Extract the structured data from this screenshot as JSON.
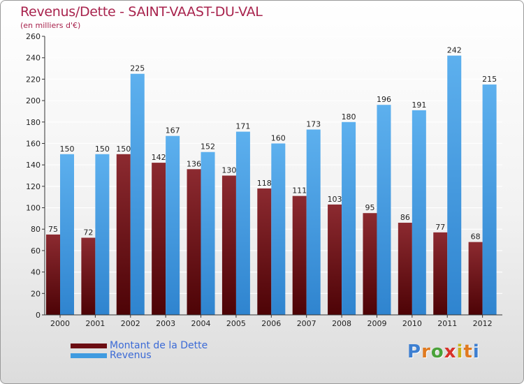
{
  "title": "Revenus/Dette - SAINT-VAAST-DU-VAL",
  "subtitle": "(en milliers d'€)",
  "colors": {
    "dette": "#7a1218",
    "revenus": "#3f9be0",
    "title": "#a8234d",
    "legend_text": "#3b6ad6"
  },
  "legend": [
    {
      "label": "Montant de la Dette",
      "color": "#6b0d12"
    },
    {
      "label": "Revenus",
      "color": "#3f9be0"
    }
  ],
  "logo": {
    "text": "Proxiti"
  },
  "chart_data": {
    "type": "bar",
    "title": "Revenus/Dette - SAINT-VAAST-DU-VAL",
    "subtitle": "(en milliers d'€)",
    "xlabel": "",
    "ylabel": "",
    "ylim": [
      0,
      260
    ],
    "yticks": [
      0,
      20,
      40,
      60,
      80,
      100,
      120,
      140,
      160,
      180,
      200,
      220,
      240,
      260
    ],
    "grid": true,
    "legend_position": "bottom-left",
    "categories": [
      "2000",
      "2001",
      "2002",
      "2003",
      "2004",
      "2005",
      "2006",
      "2007",
      "2008",
      "2009",
      "2010",
      "2011",
      "2012"
    ],
    "series": [
      {
        "name": "Montant de la Dette",
        "values": [
          75,
          72,
          150,
          142,
          136,
          130,
          118,
          111,
          103,
          95,
          86,
          77,
          68
        ]
      },
      {
        "name": "Revenus",
        "values": [
          150,
          150,
          225,
          167,
          152,
          171,
          160,
          173,
          180,
          196,
          191,
          242,
          215
        ]
      }
    ]
  }
}
